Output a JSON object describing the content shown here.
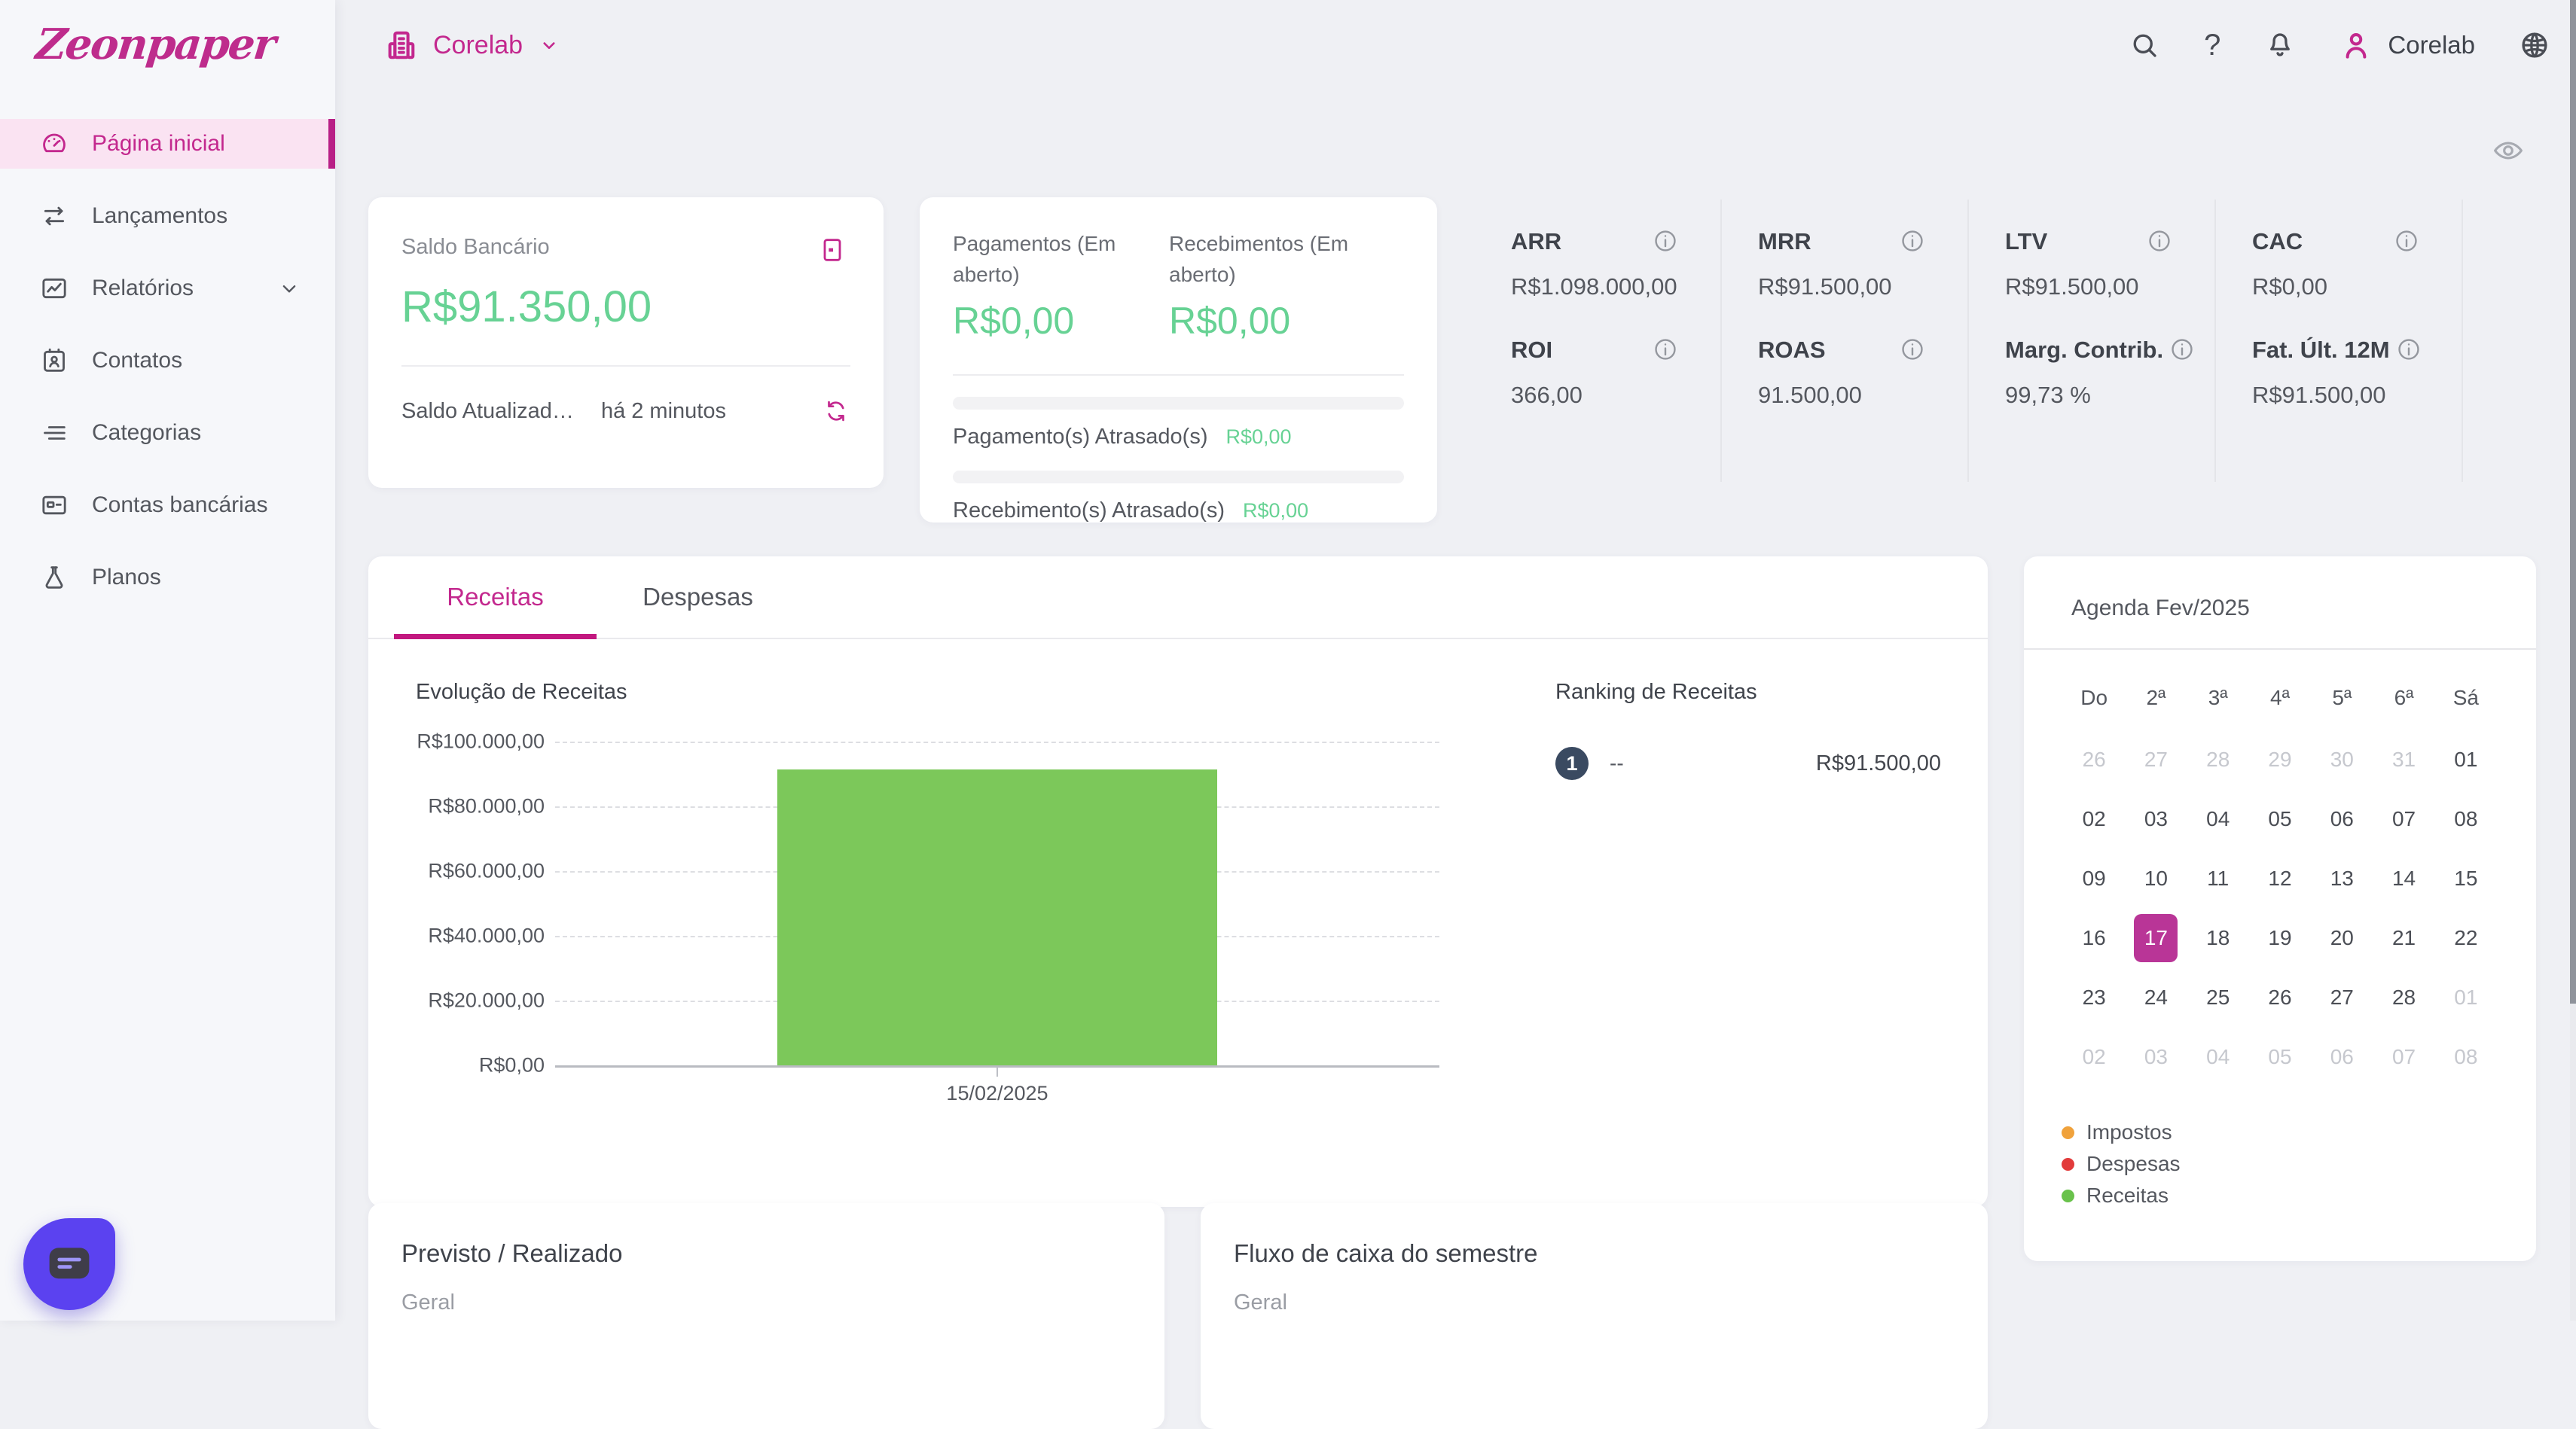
{
  "colors": {
    "accent_magenta": "#C3288E",
    "tab_underline": "#C2187F",
    "selected_day_bg": "#B93597",
    "money_green": "#67D294",
    "bar_green": "#7CC85A",
    "rank_badge_navy": "#3A4A61",
    "chat_fab_purple": "#5B42F0",
    "page_background": "#EFF0F4"
  },
  "brand": {
    "logo_text": "Zeonpaper"
  },
  "topbar": {
    "company_selector": "Corelab",
    "help_glyph": "?",
    "user_name": "Corelab"
  },
  "sidebar": {
    "items": [
      {
        "label": "Página inicial",
        "icon": "dashboard-icon",
        "active": true,
        "chevron": false
      },
      {
        "label": "Lançamentos",
        "icon": "swap-icon",
        "active": false,
        "chevron": false
      },
      {
        "label": "Relatórios",
        "icon": "report-icon",
        "active": false,
        "chevron": true
      },
      {
        "label": "Contatos",
        "icon": "contacts-icon",
        "active": false,
        "chevron": false
      },
      {
        "label": "Categorias",
        "icon": "categories-icon",
        "active": false,
        "chevron": false
      },
      {
        "label": "Contas bancárias",
        "icon": "bank-card-icon",
        "active": false,
        "chevron": false
      },
      {
        "label": "Planos",
        "icon": "flask-icon",
        "active": false,
        "chevron": false
      }
    ]
  },
  "saldo_card": {
    "title": "Saldo Bancário",
    "value": "R$91.350,00",
    "updated_label": "Saldo Atualizad…",
    "updated_time": "há 2 minutos"
  },
  "aberto_card": {
    "pagamentos_label": "Pagamentos (Em aberto)",
    "pagamentos_value": "R$0,00",
    "recebimentos_label": "Recebimentos (Em aberto)",
    "recebimentos_value": "R$0,00",
    "pagamentos_atrasados_label": "Pagamento(s) Atrasado(s)",
    "pagamentos_atrasados_value": "R$0,00",
    "recebimentos_atrasados_label": "Recebimento(s) Atrasado(s)",
    "recebimentos_atrasados_value": "R$0,00"
  },
  "kpis": [
    {
      "label": "ARR",
      "value": "R$1.098.000,00"
    },
    {
      "label": "MRR",
      "value": "R$91.500,00"
    },
    {
      "label": "LTV",
      "value": "R$91.500,00"
    },
    {
      "label": "CAC",
      "value": "R$0,00"
    },
    {
      "label": "ROI",
      "value": "366,00"
    },
    {
      "label": "ROAS",
      "value": "91.500,00"
    },
    {
      "label": "Marg. Contrib.",
      "value": "99,73 %"
    },
    {
      "label": "Fat. Últ. 12M",
      "value": "R$91.500,00"
    }
  ],
  "tabs": {
    "receitas": "Receitas",
    "despesas": "Despesas"
  },
  "chart_data": {
    "type": "bar",
    "title": "Evolução de Receitas",
    "categories": [
      "15/02/2025"
    ],
    "values": [
      91500
    ],
    "ylim": [
      0,
      100000
    ],
    "ytick_values": [
      100000,
      80000,
      60000,
      40000,
      20000,
      0
    ],
    "ytick_labels": [
      "R$100.000,00",
      "R$80.000,00",
      "R$60.000,00",
      "R$40.000,00",
      "R$20.000,00",
      "R$0,00"
    ],
    "grid": true,
    "legend_position": "none",
    "bar_color": "#7CC85A"
  },
  "ranking": {
    "title": "Ranking de Receitas",
    "rows": [
      {
        "rank": "1",
        "name": "--",
        "value": "R$91.500,00"
      }
    ]
  },
  "agenda": {
    "title": "Agenda Fev/2025",
    "weekday_headers": [
      "Do",
      "2ª",
      "3ª",
      "4ª",
      "5ª",
      "6ª",
      "Sá"
    ],
    "weeks": [
      [
        {
          "d": "26",
          "muted": true
        },
        {
          "d": "27",
          "muted": true
        },
        {
          "d": "28",
          "muted": true
        },
        {
          "d": "29",
          "muted": true
        },
        {
          "d": "30",
          "muted": true
        },
        {
          "d": "31",
          "muted": true
        },
        {
          "d": "01"
        }
      ],
      [
        {
          "d": "02"
        },
        {
          "d": "03"
        },
        {
          "d": "04"
        },
        {
          "d": "05"
        },
        {
          "d": "06"
        },
        {
          "d": "07"
        },
        {
          "d": "08"
        }
      ],
      [
        {
          "d": "09"
        },
        {
          "d": "10"
        },
        {
          "d": "11"
        },
        {
          "d": "12"
        },
        {
          "d": "13"
        },
        {
          "d": "14"
        },
        {
          "d": "15"
        }
      ],
      [
        {
          "d": "16"
        },
        {
          "d": "17",
          "selected": true
        },
        {
          "d": "18"
        },
        {
          "d": "19"
        },
        {
          "d": "20"
        },
        {
          "d": "21"
        },
        {
          "d": "22"
        }
      ],
      [
        {
          "d": "23"
        },
        {
          "d": "24"
        },
        {
          "d": "25"
        },
        {
          "d": "26"
        },
        {
          "d": "27"
        },
        {
          "d": "28"
        },
        {
          "d": "01",
          "muted": true
        }
      ],
      [
        {
          "d": "02",
          "muted": true
        },
        {
          "d": "03",
          "muted": true
        },
        {
          "d": "04",
          "muted": true
        },
        {
          "d": "05",
          "muted": true
        },
        {
          "d": "06",
          "muted": true
        },
        {
          "d": "07",
          "muted": true
        },
        {
          "d": "08",
          "muted": true
        }
      ]
    ],
    "legend": [
      {
        "label": "Impostos",
        "color": "#F0A23C"
      },
      {
        "label": "Despesas",
        "color": "#E23B3B"
      },
      {
        "label": "Receitas",
        "color": "#69C24B"
      }
    ]
  },
  "bottom_cards": {
    "previsto": {
      "title": "Previsto / Realizado",
      "subtitle": "Geral"
    },
    "fluxo": {
      "title": "Fluxo de caixa do semestre",
      "subtitle": "Geral"
    }
  }
}
